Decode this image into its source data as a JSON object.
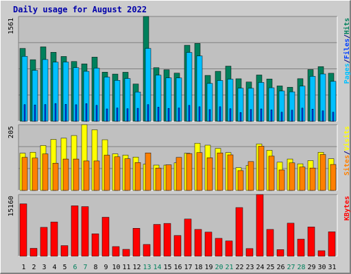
{
  "colors": {
    "background": "#cccccc",
    "plot_background": "#c0c0c0",
    "grid": "#808080",
    "title": "#0000aa",
    "hits": "#00805c",
    "files": "#00c0ff",
    "pages": "#0040ff",
    "visits": "#ffff00",
    "sites": "#ff8000",
    "kbytes": "#ff0000",
    "weekend_label": "#00805c",
    "weekday_label": "#000000"
  },
  "chart_data": [
    {
      "type": "bar",
      "title": "Daily usage for August 2022",
      "ylabel_max": "1561",
      "ymax": 1561,
      "legend": [
        {
          "label": "Pages",
          "color": "#00c0ff"
        },
        {
          "label": "/",
          "color": "#000080"
        },
        {
          "label": "Files",
          "color": "#0040ff"
        },
        {
          "label": "/",
          "color": "#000080"
        },
        {
          "label": "Hits",
          "color": "#00805c"
        }
      ],
      "categories": [
        "1",
        "2",
        "3",
        "4",
        "5",
        "6",
        "7",
        "8",
        "9",
        "10",
        "11",
        "12",
        "13",
        "14",
        "15",
        "16",
        "17",
        "18",
        "19",
        "20",
        "21",
        "22",
        "23",
        "24",
        "25",
        "26",
        "27",
        "28",
        "29",
        "30",
        "31"
      ],
      "weekend": [
        6,
        7,
        13,
        14,
        20,
        21,
        27,
        28
      ],
      "series": [
        {
          "name": "Hits",
          "values": [
            1085,
            917,
            1108,
            1027,
            965,
            890,
            855,
            955,
            731,
            703,
            730,
            555,
            1561,
            798,
            767,
            717,
            1132,
            1159,
            683,
            744,
            821,
            633,
            585,
            689,
            629,
            526,
            506,
            634,
            770,
            814,
            715
          ]
        },
        {
          "name": "Files",
          "values": [
            967,
            758,
            919,
            880,
            882,
            798,
            744,
            791,
            658,
            609,
            637,
            436,
            1085,
            686,
            647,
            645,
            1025,
            973,
            563,
            607,
            627,
            492,
            491,
            578,
            499,
            450,
            438,
            524,
            669,
            704,
            594
          ]
        },
        {
          "name": "Pages",
          "values": [
            248,
            243,
            249,
            264,
            252,
            246,
            263,
            237,
            184,
            198,
            187,
            193,
            248,
            210,
            192,
            198,
            237,
            216,
            174,
            216,
            187,
            130,
            175,
            184,
            169,
            135,
            165,
            196,
            181,
            155,
            135
          ]
        }
      ]
    },
    {
      "type": "bar",
      "ylabel_max": "205",
      "ymax": 205,
      "legend": [
        {
          "label": "Sites",
          "color": "#ff8000"
        },
        {
          "label": "/",
          "color": "#000080"
        },
        {
          "label": "Visits",
          "color": "#ffff00"
        }
      ],
      "categories": [
        "1",
        "2",
        "3",
        "4",
        "5",
        "6",
        "7",
        "8",
        "9",
        "10",
        "11",
        "12",
        "13",
        "14",
        "15",
        "16",
        "17",
        "18",
        "19",
        "20",
        "21",
        "22",
        "23",
        "24",
        "25",
        "26",
        "27",
        "28",
        "29",
        "30",
        "31"
      ],
      "series": [
        {
          "name": "Visits",
          "values": [
            116,
            119,
            140,
            159,
            163,
            171,
            205,
            189,
            158,
            114,
            110,
            104,
            82,
            79,
            79,
            86,
            116,
            147,
            141,
            131,
            118,
            71,
            78,
            145,
            125,
            88,
            98,
            83,
            93,
            119,
            99
          ]
        },
        {
          "name": "Sites",
          "values": [
            103,
            101,
            114,
            85,
            98,
            98,
            92,
            92,
            110,
            105,
            99,
            87,
            117,
            70,
            80,
            103,
            115,
            118,
            102,
            117,
            111,
            62,
            90,
            138,
            107,
            64,
            86,
            73,
            70,
            112,
            81
          ]
        }
      ]
    },
    {
      "type": "bar",
      "ylabel_max": "15160",
      "ymax": 15160,
      "legend": [
        {
          "label": "KBytes",
          "color": "#ff0000"
        }
      ],
      "categories": [
        "1",
        "2",
        "3",
        "4",
        "5",
        "6",
        "7",
        "8",
        "9",
        "10",
        "11",
        "12",
        "13",
        "14",
        "15",
        "16",
        "17",
        "18",
        "19",
        "20",
        "21",
        "22",
        "23",
        "24",
        "25",
        "26",
        "27",
        "28",
        "29",
        "30",
        "31"
      ],
      "series": [
        {
          "name": "KBytes",
          "values": [
            12875,
            1934,
            7092,
            8412,
            2603,
            12391,
            12197,
            5500,
            9587,
            2364,
            1687,
            6863,
            2883,
            7820,
            8063,
            5087,
            9136,
            6582,
            5925,
            4389,
            3753,
            11960,
            1873,
            15160,
            6582,
            1620,
            8118,
            4200,
            7200,
            1350,
            5993
          ]
        }
      ]
    }
  ]
}
